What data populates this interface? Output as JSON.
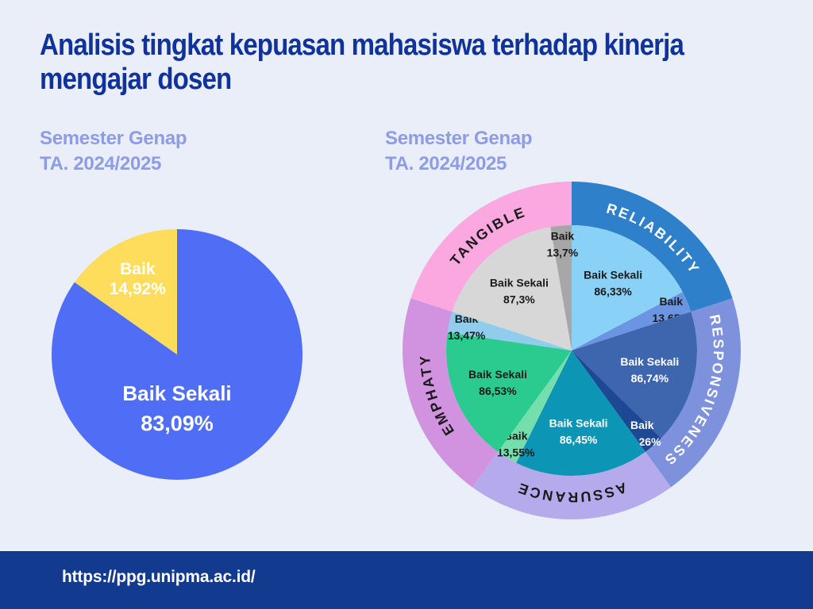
{
  "page_background": "#eaeef9",
  "subtitle_color": "#8d9ce4",
  "header": {
    "title_lines": [
      "Analisis tingkat kepuasan mahasiswa terhadap kinerja",
      "mengajar dosen"
    ],
    "title_color": "#10339b"
  },
  "footer": {
    "url": "https://ppg.unipma.ac.id/",
    "bar_color": "#123a8e",
    "text_color": "#ffffff"
  },
  "chart_data": [
    {
      "type": "pie",
      "subtitle_lines": [
        "Semester Genap",
        "TA. 2024/2025"
      ],
      "direction": "clockwise",
      "start_angle_deg": 0,
      "legend": "none, labels inside slices",
      "slices": [
        {
          "label": "Baik Sekali",
          "value": 83.09,
          "display_value": "83,09%",
          "color": "#4f6df5",
          "label_color": "#ffffff"
        },
        {
          "label": "Baik",
          "value": 14.92,
          "display_value": "14,92%",
          "color": "#fedd5c",
          "label_color": "#ffffff"
        }
      ]
    },
    {
      "type": "sunburst",
      "subtitle_lines": [
        "Semester Genap",
        "TA. 2024/2025"
      ],
      "direction": "clockwise",
      "start_angle_deg": 0,
      "legend": "category names on outer ring, rating labels inside slices",
      "categories": [
        {
          "name": "RELIABILITY",
          "ring_color": "#2e80ca",
          "ring_label_color": "#ffffff",
          "segments": [
            {
              "label": "Baik Sekali",
              "value": 86.33,
              "display_value": "86,33%",
              "color": "#8ad1f7",
              "label_color": "#1a1a1a"
            },
            {
              "label": "Baik",
              "value": 13.65,
              "display_value": "13,65%",
              "color": "#6b95e2",
              "label_color": "#1a1a1a"
            }
          ]
        },
        {
          "name": "RESPONSIVENESS",
          "ring_color": "#7d91dd",
          "ring_label_color": "#ffffff",
          "segments": [
            {
              "label": "Baik Sekali",
              "value": 86.74,
              "display_value": "86,74%",
              "color": "#3e66af",
              "label_color": "#ffffff"
            },
            {
              "label": "Baik",
              "value": 13.26,
              "display_value": "13,26%",
              "color": "#1d4894",
              "label_color": "#ffffff"
            }
          ]
        },
        {
          "name": "ASSURANCE",
          "ring_color": "#b5aaec",
          "ring_label_color": "#1a1a1a",
          "segments": [
            {
              "label": "Baik Sekali",
              "value": 86.45,
              "display_value": "86,45%",
              "color": "#0d95b5",
              "label_color": "#ffffff"
            },
            {
              "label": "Baik",
              "value": 13.55,
              "display_value": "13,55%",
              "color": "#74dfac",
              "label_color": "#1a1a1a"
            }
          ]
        },
        {
          "name": "EMPHATY",
          "ring_color": "#d192e0",
          "ring_label_color": "#1a1a1a",
          "segments": [
            {
              "label": "Baik Sekali",
              "value": 86.53,
              "display_value": "86,53%",
              "color": "#2bcb90",
              "label_color": "#1a1a1a"
            },
            {
              "label": "Baik",
              "value": 13.47,
              "display_value": "13,47%",
              "color": "#90cdec",
              "label_color": "#1a1a1a"
            }
          ]
        },
        {
          "name": "TANGIBLE",
          "ring_color": "#fba7e0",
          "ring_label_color": "#1a1a1a",
          "segments": [
            {
              "label": "Baik Sekali",
              "value": 87.3,
              "display_value": "87,3%",
              "color": "#d7d7d7",
              "label_color": "#1a1a1a"
            },
            {
              "label": "Baik",
              "value": 13.7,
              "display_value": "13,7%",
              "color": "#a7a7a7",
              "label_color": "#1a1a1a"
            }
          ]
        }
      ]
    }
  ]
}
